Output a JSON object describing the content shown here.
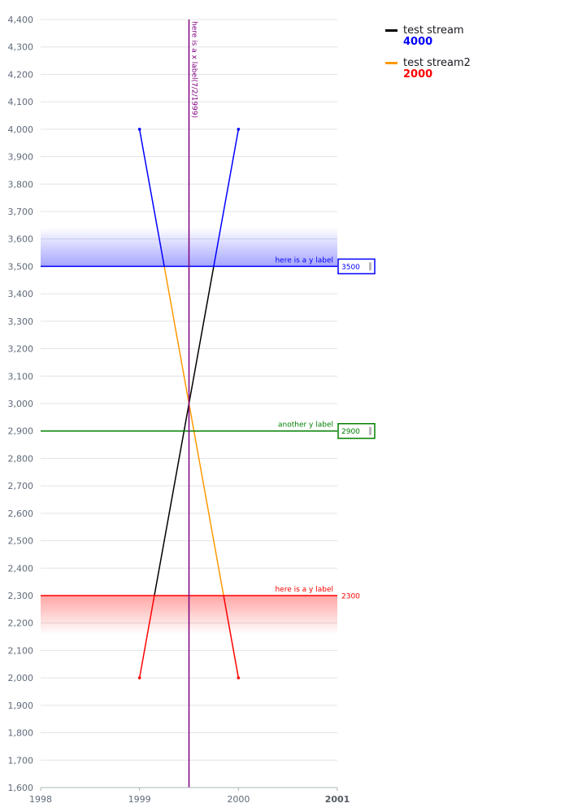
{
  "chart_data": {
    "type": "line",
    "xlim": [
      1998,
      2001
    ],
    "ylim": [
      1600,
      4400
    ],
    "x_ticks": [
      1998,
      1999,
      2000,
      2001
    ],
    "y_ticks": [
      1600,
      1700,
      1800,
      1900,
      2000,
      2100,
      2200,
      2300,
      2400,
      2500,
      2600,
      2700,
      2800,
      2900,
      3000,
      3100,
      3200,
      3300,
      3400,
      3500,
      3600,
      3700,
      3800,
      3900,
      4000,
      4100,
      4200,
      4300,
      4400
    ],
    "grid": true,
    "legend": "right",
    "series": [
      {
        "name": "test stream",
        "legend_value": "4000",
        "color": "#000000",
        "points": [
          {
            "x": 1999,
            "y": 2000
          },
          {
            "x": 2000,
            "y": 4000
          }
        ]
      },
      {
        "name": "test stream2",
        "legend_value": "2000",
        "color": "#ff9900",
        "points": [
          {
            "x": 1999,
            "y": 4000
          },
          {
            "x": 2000,
            "y": 2000
          }
        ]
      }
    ],
    "thresholds": [
      {
        "value": 3500,
        "label": "here is a y label",
        "value_label": "3500",
        "color": "#0000ff",
        "band": "above",
        "boxed": true
      },
      {
        "value": 2900,
        "label": "another y label",
        "value_label": "2900",
        "color": "#008000",
        "band": "none",
        "boxed": true
      },
      {
        "value": 2300,
        "label": "here is a y label",
        "value_label": "2300",
        "color": "#ff0000",
        "band": "below",
        "boxed": false
      }
    ],
    "upper_color": "#0000ff",
    "lower_color": "#ff0000",
    "x_annotations": [
      {
        "x": 1999.5,
        "label": "here is a x label(7/2/1999)",
        "color": "#800080"
      }
    ]
  }
}
